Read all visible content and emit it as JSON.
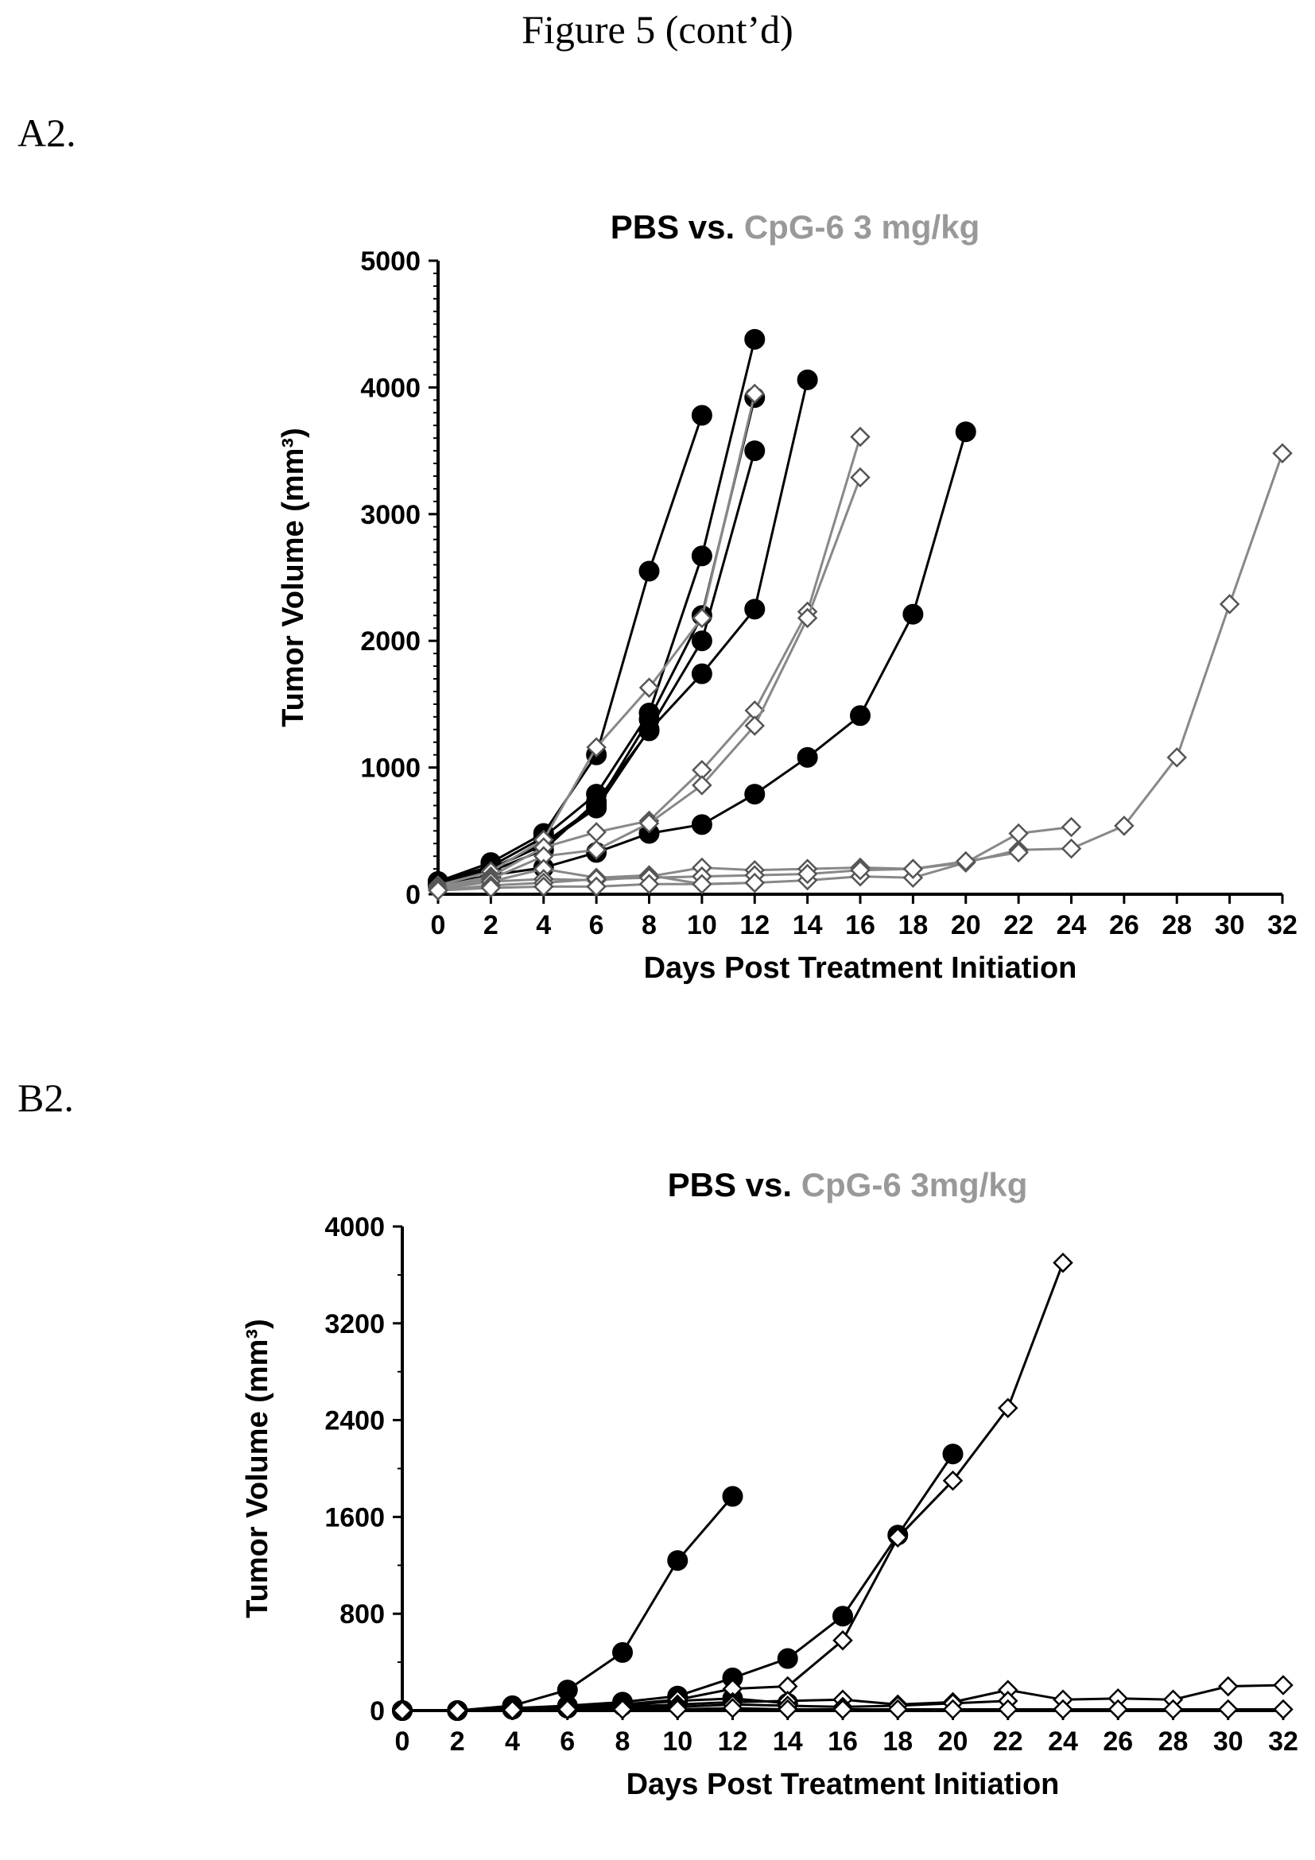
{
  "figure_title": "Figure 5 (cont’d)",
  "panels": [
    {
      "label": "A2."
    },
    {
      "label": "B2."
    }
  ],
  "chart_data": [
    {
      "type": "line",
      "title_parts": [
        {
          "text": "PBS vs. ",
          "color": "#000000"
        },
        {
          "text": "CpG-6 3 mg/kg",
          "color": "#999999"
        }
      ],
      "xlabel": "Days Post Treatment Initiation",
      "ylabel": "Tumor Volume (mm³)",
      "xlim": [
        0,
        32
      ],
      "ylim": [
        0,
        5000
      ],
      "xticks": [
        "0",
        "2",
        "4",
        "6",
        "8",
        "10",
        "12",
        "14",
        "16",
        "18",
        "20",
        "22",
        "24",
        "26",
        "28",
        "30",
        "32"
      ],
      "yticks": [
        "0",
        "1000",
        "2000",
        "3000",
        "4000",
        "5000"
      ],
      "grid": false,
      "series": [
        {
          "group": "PBS",
          "marker": "filled-circle",
          "color": "#000000",
          "x": [
            0,
            2,
            4,
            6,
            8,
            10
          ],
          "y": [
            100,
            250,
            480,
            1100,
            2550,
            3780
          ]
        },
        {
          "group": "PBS",
          "marker": "filled-circle",
          "color": "#000000",
          "x": [
            0,
            2,
            4,
            6,
            8,
            10,
            12
          ],
          "y": [
            100,
            220,
            450,
            790,
            1430,
            2670,
            4380
          ]
        },
        {
          "group": "PBS",
          "marker": "filled-circle",
          "color": "#000000",
          "x": [
            0,
            2,
            4,
            6,
            8,
            10,
            12
          ],
          "y": [
            90,
            200,
            400,
            700,
            1380,
            2200,
            3920
          ]
        },
        {
          "group": "PBS",
          "marker": "filled-circle",
          "color": "#000000",
          "x": [
            0,
            2,
            4,
            6,
            8,
            10,
            12
          ],
          "y": [
            90,
            200,
            390,
            680,
            1300,
            2000,
            3500
          ]
        },
        {
          "group": "PBS",
          "marker": "filled-circle",
          "color": "#000000",
          "x": [
            0,
            2,
            4,
            6,
            8,
            10,
            12,
            14
          ],
          "y": [
            80,
            180,
            350,
            730,
            1290,
            1740,
            2250,
            4060
          ]
        },
        {
          "group": "PBS",
          "marker": "filled-circle",
          "color": "#000000",
          "x": [
            0,
            2,
            4,
            6,
            8,
            10,
            12,
            14,
            16,
            18,
            20
          ],
          "y": [
            70,
            150,
            210,
            330,
            480,
            550,
            790,
            1080,
            1410,
            2210,
            3650
          ]
        },
        {
          "group": "CpG-6 3 mg/kg",
          "marker": "open-diamond",
          "color": "#888888",
          "x": [
            0,
            2,
            4,
            6,
            8,
            10,
            12
          ],
          "y": [
            70,
            180,
            430,
            1160,
            1630,
            2180,
            3950
          ]
        },
        {
          "group": "CpG-6 3 mg/kg",
          "marker": "open-diamond",
          "color": "#888888",
          "x": [
            0,
            2,
            4,
            6,
            8,
            10,
            12,
            14,
            16
          ],
          "y": [
            60,
            140,
            370,
            490,
            580,
            980,
            1450,
            2230,
            3610
          ]
        },
        {
          "group": "CpG-6 3 mg/kg",
          "marker": "open-diamond",
          "color": "#888888",
          "x": [
            0,
            2,
            4,
            6,
            8,
            10,
            12,
            14,
            16
          ],
          "y": [
            50,
            120,
            300,
            350,
            560,
            860,
            1330,
            2180,
            3290
          ]
        },
        {
          "group": "CpG-6 3 mg/kg",
          "marker": "open-diamond",
          "color": "#888888",
          "x": [
            0,
            2,
            4,
            6,
            8,
            10,
            12,
            14,
            16,
            18,
            20,
            22,
            24,
            26,
            28,
            30,
            32
          ],
          "y": [
            40,
            100,
            200,
            130,
            150,
            80,
            90,
            110,
            140,
            130,
            250,
            350,
            360,
            540,
            1080,
            2290,
            3480
          ]
        },
        {
          "group": "CpG-6 3 mg/kg",
          "marker": "open-diamond",
          "color": "#888888",
          "x": [
            0,
            2,
            4,
            6,
            8,
            10,
            12,
            14,
            16,
            18,
            20,
            22,
            24
          ],
          "y": [
            40,
            100,
            120,
            110,
            140,
            210,
            190,
            200,
            210,
            200,
            250,
            480,
            530
          ]
        },
        {
          "group": "CpG-6 3 mg/kg",
          "marker": "open-diamond",
          "color": "#888888",
          "x": [
            0,
            2,
            4,
            6,
            8,
            10,
            12,
            14,
            16,
            18,
            20,
            22
          ],
          "y": [
            30,
            70,
            90,
            120,
            130,
            140,
            150,
            160,
            190,
            200,
            260,
            330
          ]
        },
        {
          "group": "CpG-6 3 mg/kg",
          "marker": "open-diamond",
          "color": "#888888",
          "x": [
            0,
            2,
            4,
            6,
            8,
            10,
            12
          ],
          "y": [
            30,
            50,
            60,
            60,
            80,
            80,
            90
          ]
        }
      ]
    },
    {
      "type": "line",
      "title_parts": [
        {
          "text": "PBS vs. ",
          "color": "#000000"
        },
        {
          "text": "CpG-6 3mg/kg",
          "color": "#999999"
        }
      ],
      "xlabel": "Days Post Treatment Initiation",
      "ylabel": "Tumor Volume (mm³)",
      "xlim": [
        0,
        32
      ],
      "ylim": [
        0,
        4000
      ],
      "xticks": [
        "0",
        "2",
        "4",
        "6",
        "8",
        "10",
        "12",
        "14",
        "16",
        "18",
        "20",
        "22",
        "24",
        "26",
        "28",
        "30",
        "32"
      ],
      "yticks": [
        "0",
        "800",
        "1600",
        "2400",
        "3200",
        "4000"
      ],
      "grid": false,
      "series": [
        {
          "group": "PBS",
          "marker": "filled-circle",
          "color": "#000000",
          "x": [
            0,
            2,
            4,
            6,
            8,
            10,
            12
          ],
          "y": [
            0,
            0,
            40,
            170,
            480,
            1240,
            1770
          ]
        },
        {
          "group": "PBS",
          "marker": "filled-circle",
          "color": "#000000",
          "x": [
            0,
            2,
            4,
            6,
            8,
            10,
            12,
            14,
            16,
            18,
            20
          ],
          "y": [
            0,
            0,
            20,
            40,
            70,
            120,
            270,
            430,
            780,
            1450,
            2120
          ]
        },
        {
          "group": "PBS",
          "marker": "filled-circle",
          "color": "#000000",
          "x": [
            0,
            2,
            4,
            6,
            8,
            10,
            12,
            14
          ],
          "y": [
            0,
            0,
            10,
            20,
            40,
            80,
            100,
            60
          ]
        },
        {
          "group": "CpG-6 3mg/kg",
          "marker": "open-diamond",
          "color": "#000000",
          "x": [
            0,
            2,
            4,
            6,
            8,
            10,
            12,
            14,
            16,
            18,
            20,
            22,
            24
          ],
          "y": [
            0,
            0,
            20,
            30,
            50,
            90,
            180,
            200,
            580,
            1430,
            1900,
            2500,
            3700
          ]
        },
        {
          "group": "CpG-6 3mg/kg",
          "marker": "open-diamond",
          "color": "#000000",
          "x": [
            0,
            2,
            4,
            6,
            8,
            10,
            12,
            14,
            16,
            18,
            20,
            22,
            24,
            26,
            28,
            30,
            32
          ],
          "y": [
            0,
            0,
            10,
            20,
            30,
            50,
            70,
            80,
            90,
            50,
            70,
            170,
            90,
            100,
            90,
            200,
            210
          ]
        },
        {
          "group": "CpG-6 3mg/kg",
          "marker": "open-diamond",
          "color": "#000000",
          "x": [
            0,
            2,
            4,
            6,
            8,
            10,
            12,
            14,
            16,
            18,
            20,
            22
          ],
          "y": [
            0,
            0,
            10,
            10,
            20,
            30,
            50,
            40,
            30,
            40,
            60,
            80
          ]
        },
        {
          "group": "CpG-6 3mg/kg",
          "marker": "open-diamond",
          "color": "#000000",
          "x": [
            0,
            2,
            4,
            6,
            8,
            10,
            12,
            14,
            16,
            18,
            20,
            22,
            24,
            26,
            28,
            30,
            32
          ],
          "y": [
            0,
            0,
            5,
            10,
            10,
            10,
            20,
            10,
            10,
            10,
            10,
            10,
            10,
            10,
            10,
            10,
            10
          ]
        }
      ]
    }
  ]
}
